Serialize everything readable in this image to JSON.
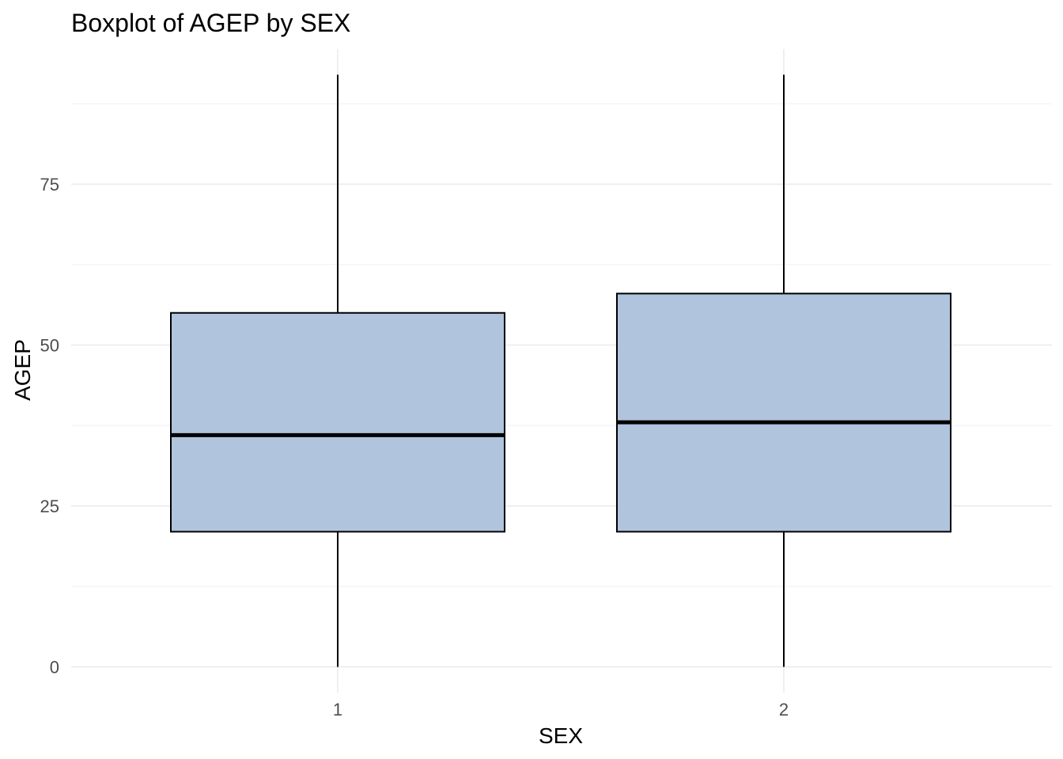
{
  "chart_data": {
    "type": "boxplot",
    "title": "Boxplot of AGEP by SEX",
    "xlabel": "SEX",
    "ylabel": "AGEP",
    "categories": [
      "1",
      "2"
    ],
    "yticks": [
      0,
      25,
      50,
      75
    ],
    "ytick_labels": [
      "0",
      "25",
      "50",
      "75"
    ],
    "ylim": [
      -4,
      96
    ],
    "grid": true,
    "legend": "none",
    "fill_color": "#b0c4de",
    "line_color": "#000000",
    "boxes": [
      {
        "category": "1",
        "min": 0,
        "q1": 21,
        "median": 36,
        "q3": 55,
        "max": 92
      },
      {
        "category": "2",
        "min": 0,
        "q1": 21,
        "median": 38,
        "q3": 58,
        "max": 92
      }
    ]
  }
}
